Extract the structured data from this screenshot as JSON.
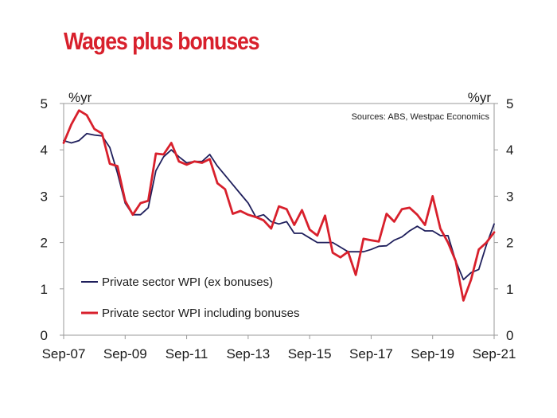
{
  "title": "Wages plus bonuses",
  "chart_data": {
    "type": "line",
    "title": "Wages plus bonuses",
    "source": "Sources: ABS, Westpac Economics",
    "ylabel_left": "%yr",
    "ylabel_right": "%yr",
    "ylim": [
      0,
      5
    ],
    "yticks": [
      "0",
      "1",
      "2",
      "3",
      "4",
      "5"
    ],
    "xticks": [
      "Sep-07",
      "Sep-09",
      "Sep-11",
      "Sep-13",
      "Sep-15",
      "Sep-17",
      "Sep-19",
      "Sep-21"
    ],
    "grid": false,
    "legend": "bottom-left",
    "series": [
      {
        "name": "Private sector WPI (ex bonuses)",
        "color": "#1f1f5c",
        "points": [
          [
            "Sep-07",
            4.2
          ],
          [
            "Dec-07",
            4.15
          ],
          [
            "Mar-08",
            4.2
          ],
          [
            "Jun-08",
            4.35
          ],
          [
            "Sep-08",
            4.32
          ],
          [
            "Dec-08",
            4.3
          ],
          [
            "Mar-09",
            4.05
          ],
          [
            "Jun-09",
            3.5
          ],
          [
            "Sep-09",
            2.85
          ],
          [
            "Dec-09",
            2.6
          ],
          [
            "Mar-10",
            2.6
          ],
          [
            "Jun-10",
            2.75
          ],
          [
            "Sep-10",
            3.55
          ],
          [
            "Dec-10",
            3.85
          ],
          [
            "Mar-11",
            4.0
          ],
          [
            "Jun-11",
            3.85
          ],
          [
            "Sep-11",
            3.72
          ],
          [
            "Dec-11",
            3.75
          ],
          [
            "Mar-12",
            3.75
          ],
          [
            "Jun-12",
            3.9
          ],
          [
            "Sep-12",
            3.65
          ],
          [
            "Dec-12",
            3.45
          ],
          [
            "Mar-13",
            3.25
          ],
          [
            "Jun-13",
            3.05
          ],
          [
            "Sep-13",
            2.85
          ],
          [
            "Dec-13",
            2.55
          ],
          [
            "Mar-14",
            2.6
          ],
          [
            "Jun-14",
            2.45
          ],
          [
            "Sep-14",
            2.4
          ],
          [
            "Dec-14",
            2.45
          ],
          [
            "Mar-15",
            2.2
          ],
          [
            "Jun-15",
            2.2
          ],
          [
            "Sep-15",
            2.1
          ],
          [
            "Dec-15",
            2.0
          ],
          [
            "Mar-16",
            2.0
          ],
          [
            "Jun-16",
            2.0
          ],
          [
            "Sep-16",
            1.9
          ],
          [
            "Dec-16",
            1.8
          ],
          [
            "Mar-17",
            1.8
          ],
          [
            "Jun-17",
            1.8
          ],
          [
            "Sep-17",
            1.85
          ],
          [
            "Dec-17",
            1.92
          ],
          [
            "Mar-18",
            1.93
          ],
          [
            "Jun-18",
            2.05
          ],
          [
            "Sep-18",
            2.12
          ],
          [
            "Dec-18",
            2.25
          ],
          [
            "Mar-19",
            2.35
          ],
          [
            "Jun-19",
            2.25
          ],
          [
            "Sep-19",
            2.25
          ],
          [
            "Dec-19",
            2.15
          ],
          [
            "Mar-20",
            2.15
          ],
          [
            "Jun-20",
            1.6
          ],
          [
            "Sep-20",
            1.2
          ],
          [
            "Dec-20",
            1.35
          ],
          [
            "Mar-21",
            1.42
          ],
          [
            "Jun-21",
            1.95
          ],
          [
            "Sep-21",
            2.4
          ]
        ]
      },
      {
        "name": "Private sector WPI including bonuses",
        "color": "#d8202c",
        "points": [
          [
            "Sep-07",
            4.15
          ],
          [
            "Dec-07",
            4.55
          ],
          [
            "Mar-08",
            4.85
          ],
          [
            "Jun-08",
            4.75
          ],
          [
            "Sep-08",
            4.45
          ],
          [
            "Dec-08",
            4.35
          ],
          [
            "Mar-09",
            3.7
          ],
          [
            "Jun-09",
            3.65
          ],
          [
            "Sep-09",
            2.9
          ],
          [
            "Dec-09",
            2.6
          ],
          [
            "Mar-10",
            2.85
          ],
          [
            "Jun-10",
            2.9
          ],
          [
            "Sep-10",
            3.92
          ],
          [
            "Dec-10",
            3.9
          ],
          [
            "Mar-11",
            4.15
          ],
          [
            "Jun-11",
            3.75
          ],
          [
            "Sep-11",
            3.68
          ],
          [
            "Dec-11",
            3.75
          ],
          [
            "Mar-12",
            3.72
          ],
          [
            "Jun-12",
            3.8
          ],
          [
            "Sep-12",
            3.28
          ],
          [
            "Dec-12",
            3.15
          ],
          [
            "Mar-13",
            2.62
          ],
          [
            "Jun-13",
            2.68
          ],
          [
            "Sep-13",
            2.6
          ],
          [
            "Dec-13",
            2.55
          ],
          [
            "Mar-14",
            2.48
          ],
          [
            "Jun-14",
            2.3
          ],
          [
            "Sep-14",
            2.78
          ],
          [
            "Dec-14",
            2.72
          ],
          [
            "Mar-15",
            2.38
          ],
          [
            "Jun-15",
            2.7
          ],
          [
            "Sep-15",
            2.28
          ],
          [
            "Dec-15",
            2.15
          ],
          [
            "Mar-16",
            2.58
          ],
          [
            "Jun-16",
            1.78
          ],
          [
            "Sep-16",
            1.68
          ],
          [
            "Dec-16",
            1.8
          ],
          [
            "Mar-17",
            1.3
          ],
          [
            "Jun-17",
            2.08
          ],
          [
            "Sep-17",
            2.05
          ],
          [
            "Dec-17",
            2.02
          ],
          [
            "Mar-18",
            2.62
          ],
          [
            "Jun-18",
            2.45
          ],
          [
            "Sep-18",
            2.72
          ],
          [
            "Dec-18",
            2.75
          ],
          [
            "Mar-19",
            2.6
          ],
          [
            "Jun-19",
            2.38
          ],
          [
            "Sep-19",
            3.0
          ],
          [
            "Dec-19",
            2.3
          ],
          [
            "Mar-20",
            2.0
          ],
          [
            "Jun-20",
            1.6
          ],
          [
            "Sep-20",
            0.75
          ],
          [
            "Dec-20",
            1.2
          ],
          [
            "Mar-21",
            1.85
          ],
          [
            "Jun-21",
            2.0
          ],
          [
            "Sep-21",
            2.22
          ]
        ]
      }
    ]
  }
}
